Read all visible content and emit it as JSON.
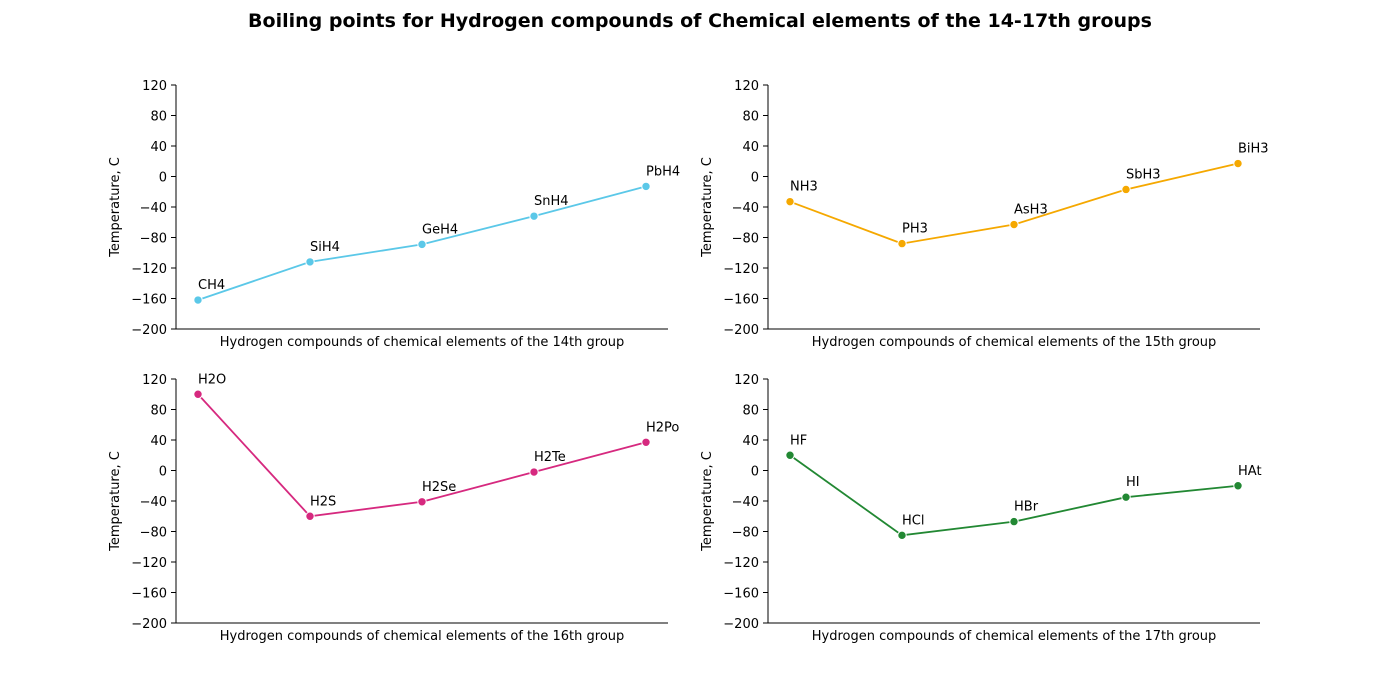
{
  "title": "Boiling points for Hydrogen compounds of Chemical elements of the 14-17th groups",
  "chart_data": [
    {
      "type": "line",
      "title": "",
      "xlabel": "Hydrogen compounds of chemical elements of the 14th group",
      "ylabel": "Temperature, C",
      "ylim": [
        -200,
        120
      ],
      "yticks": [
        120,
        80,
        40,
        0,
        -40,
        -80,
        -120,
        -160,
        -200
      ],
      "ytick_labels": [
        "120",
        "80",
        "40",
        "0",
        "−40",
        "−80",
        "−120",
        "−160",
        "−200"
      ],
      "grid": false,
      "color": "#5bc8e8",
      "categories": [
        "CH4",
        "SiH4",
        "GeH4",
        "SnH4",
        "PbH4"
      ],
      "values": [
        -162,
        -112,
        -89,
        -52,
        -13
      ]
    },
    {
      "type": "line",
      "title": "",
      "xlabel": "Hydrogen compounds of chemical elements of the 15th group",
      "ylabel": "Temperature, C",
      "ylim": [
        -200,
        120
      ],
      "yticks": [
        120,
        80,
        40,
        0,
        -40,
        -80,
        -120,
        -160,
        -200
      ],
      "ytick_labels": [
        "120",
        "80",
        "40",
        "0",
        "−40",
        "−80",
        "−120",
        "−160",
        "−200"
      ],
      "grid": false,
      "color": "#f5a800",
      "categories": [
        "NH3",
        "PH3",
        "AsH3",
        "SbH3",
        "BiH3"
      ],
      "values": [
        -33,
        -88,
        -63,
        -17,
        17
      ]
    },
    {
      "type": "line",
      "title": "",
      "xlabel": "Hydrogen compounds of chemical elements of the 16th group",
      "ylabel": "Temperature, C",
      "ylim": [
        -200,
        120
      ],
      "yticks": [
        120,
        80,
        40,
        0,
        -40,
        -80,
        -120,
        -160,
        -200
      ],
      "ytick_labels": [
        "120",
        "80",
        "40",
        "0",
        "−40",
        "−80",
        "−120",
        "−160",
        "−200"
      ],
      "grid": false,
      "color": "#d6297f",
      "categories": [
        "H2O",
        "H2S",
        "H2Se",
        "H2Te",
        "H2Po"
      ],
      "values": [
        100,
        -60,
        -41,
        -2,
        37
      ]
    },
    {
      "type": "line",
      "title": "",
      "xlabel": "Hydrogen compounds of chemical elements of the 17th group",
      "ylabel": "Temperature, C",
      "ylim": [
        -200,
        120
      ],
      "yticks": [
        120,
        80,
        40,
        0,
        -40,
        -80,
        -120,
        -160,
        -200
      ],
      "ytick_labels": [
        "120",
        "80",
        "40",
        "0",
        "−40",
        "−80",
        "−120",
        "−160",
        "−200"
      ],
      "grid": false,
      "color": "#228833",
      "categories": [
        "HF",
        "HCl",
        "HBr",
        "HI",
        "HAt"
      ],
      "values": [
        20,
        -85,
        -67,
        -35,
        -20
      ]
    }
  ]
}
